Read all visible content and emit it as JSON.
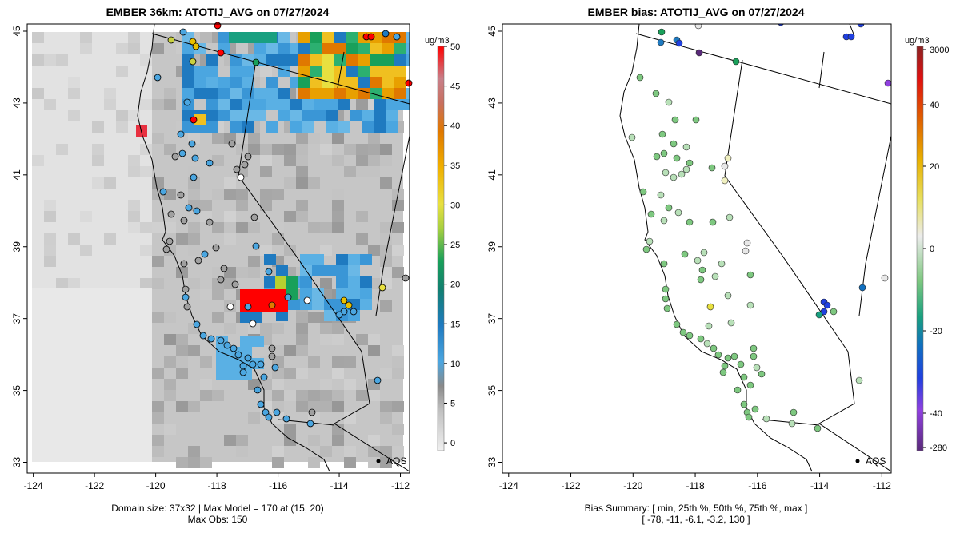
{
  "chart_data": [
    {
      "type": "heatmap",
      "title": "EMBER 36km: ATOTIJ_AVG on 07/27/2024",
      "x_ticks": [
        "-124",
        "-122",
        "-120",
        "-118",
        "-116",
        "-114",
        "-112"
      ],
      "y_ticks": [
        "33",
        "35",
        "37",
        "39",
        "41",
        "43",
        "45"
      ],
      "xlim": [
        -124.2,
        -111.7
      ],
      "ylim": [
        32.7,
        45.2
      ],
      "colorbar": {
        "unit": "ug/m3",
        "labels": [
          "0",
          "5",
          "10",
          "15",
          "20",
          "25",
          "30",
          "35",
          "40",
          "45",
          "50"
        ],
        "range": [
          -1,
          50
        ]
      },
      "station_label": "AQS",
      "footer": [
        "Domain size: 37x32 | Max Model = 170 at (15, 20)",
        "Max Obs: 150"
      ]
    },
    {
      "type": "scatter",
      "title": "EMBER bias: ATOTIJ_AVG on 07/27/2024",
      "x_ticks": [
        "-124",
        "-122",
        "-120",
        "-118",
        "-116",
        "-114",
        "-112"
      ],
      "y_ticks": [
        "33",
        "35",
        "37",
        "39",
        "41",
        "43",
        "45"
      ],
      "xlim": [
        -124.2,
        -111.7
      ],
      "ylim": [
        32.7,
        45.2
      ],
      "colorbar": {
        "unit": "ug/m3",
        "labels": [
          "3000",
          "40",
          "20",
          "0",
          "-20",
          "-40",
          "-280"
        ]
      },
      "station_label": "AQS",
      "footer": [
        "Bias Summary: [ min, 25th %, 50th %, 75th %, max ]",
        "[ -78,  -11,  -6.1,  -3.2,  130 ]"
      ],
      "bias_summary": {
        "min": -78,
        "p25": -11,
        "p50": -6.1,
        "p75": -3.2,
        "max": 130
      }
    }
  ],
  "colors": {
    "high": "#ff0000",
    "gray": "#b8b8b8",
    "blue": "#4ba6e0",
    "green": "#19a05a",
    "yellow": "#e8e040",
    "orange": "#e07800"
  }
}
